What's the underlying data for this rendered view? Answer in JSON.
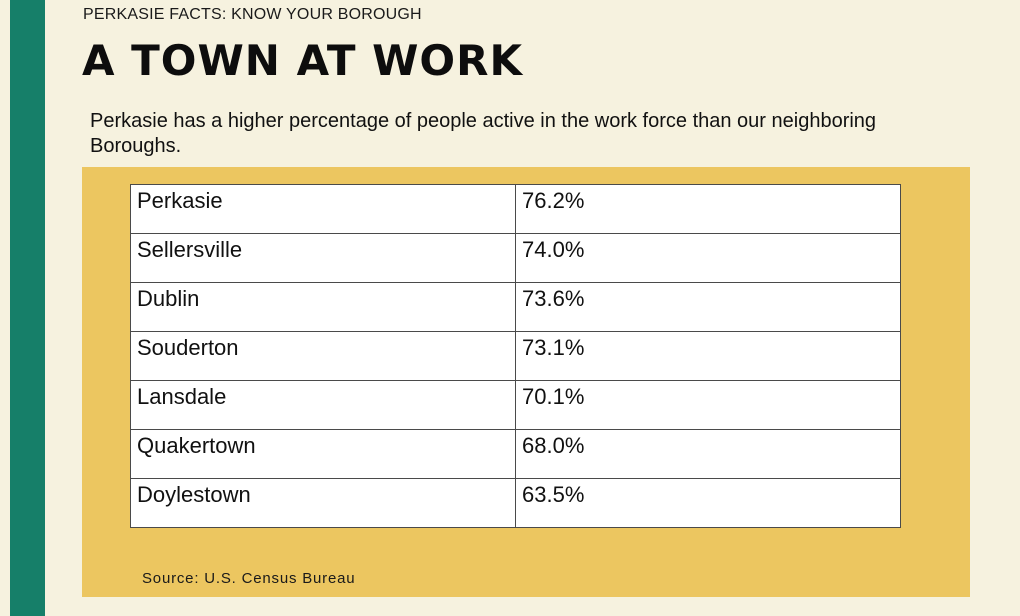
{
  "header": {
    "kicker": "PERKASIE FACTS: KNOW YOUR BOROUGH",
    "title": "A TOWN AT WORK"
  },
  "intro": "Perkasie has a higher percentage of people active in the work force than our neighboring Boroughs.",
  "table": {
    "rows": [
      {
        "borough": "Perkasie",
        "value": "76.2%"
      },
      {
        "borough": "Sellersville",
        "value": "74.0%"
      },
      {
        "borough": "Dublin",
        "value": "73.6%"
      },
      {
        "borough": "Souderton",
        "value": "73.1%"
      },
      {
        "borough": "Lansdale",
        "value": "70.1%"
      },
      {
        "borough": "Quakertown",
        "value": "68.0%"
      },
      {
        "borough": "Doylestown",
        "value": "63.5%"
      }
    ]
  },
  "source": "Source: U.S. Census Bureau",
  "colors": {
    "accent_bar": "#167f69",
    "panel": "#ecc660",
    "background": "#f6f2df"
  }
}
